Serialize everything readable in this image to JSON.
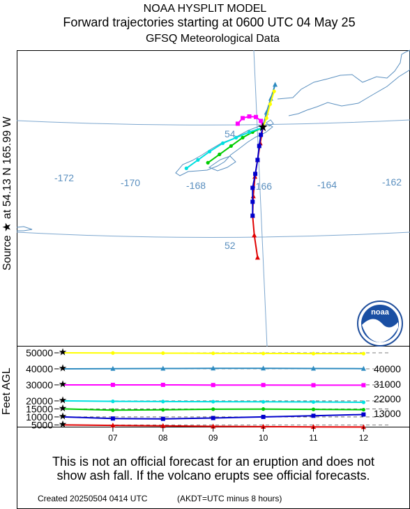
{
  "header": {
    "line1": "NOAA HYSPLIT MODEL",
    "line2": "Forward trajectories starting at 0600 UTC 04 May 25",
    "line3": "GFSQ Meteorological Data"
  },
  "source_label": "Source ★  at    54.13 N  165.99 W",
  "logo_text": "noaa",
  "map": {
    "lon_labels": [
      {
        "text": "-172"
      },
      {
        "text": "-170"
      },
      {
        "text": "-168"
      },
      {
        "text": "-166"
      },
      {
        "text": "-164"
      },
      {
        "text": "-162"
      }
    ],
    "lat_labels": [
      {
        "text": "54"
      },
      {
        "text": "52"
      }
    ]
  },
  "colors": {
    "h5000": "#e00000",
    "h10000": "#0000cc",
    "h15000": "#00cc00",
    "h20000": "#00e0e0",
    "h30000": "#ff00ff",
    "h40000": "#2e8bc0",
    "h50000": "#ffff00",
    "coast": "#5a8fbf",
    "grid": "#7da7cf"
  },
  "chart_data": {
    "type": "line",
    "title": "Forward trajectories starting at 0600 UTC 04 May 25",
    "source": {
      "lat": 54.13,
      "lon": -165.99
    },
    "ylabel": "Feet AGL",
    "x_ticks": [
      "07",
      "08",
      "09",
      "10",
      "11",
      "12"
    ],
    "y_ticks": [
      "5000",
      "10000",
      "15000",
      "20000",
      "30000",
      "40000",
      "50000"
    ],
    "right_labels": [
      "40000",
      "31000",
      "22000",
      "13000"
    ],
    "ylim": [
      3000,
      50000
    ],
    "series": [
      {
        "color": "#e00000",
        "marker": "triangle",
        "path": [
          [
            54.13,
            -165.99
          ],
          [
            53.85,
            -166.07
          ],
          [
            53.55,
            -166.15
          ],
          [
            53.25,
            -166.23
          ],
          [
            52.9,
            -166.28
          ],
          [
            52.55,
            -166.3
          ],
          [
            52.2,
            -166.25
          ],
          [
            51.8,
            -166.15
          ]
        ],
        "height": [
          5000,
          4700,
          4400,
          4100,
          3900,
          3800,
          3700
        ]
      },
      {
        "color": "#0000cc",
        "marker": "square",
        "path": [
          [
            54.13,
            -165.99
          ],
          [
            54.0,
            -166.05
          ],
          [
            53.8,
            -166.1
          ],
          [
            53.55,
            -166.15
          ],
          [
            53.3,
            -166.22
          ],
          [
            53.05,
            -166.3
          ],
          [
            52.8,
            -166.3
          ],
          [
            52.55,
            -166.3
          ]
        ],
        "height": [
          10000,
          9000,
          8800,
          9300,
          10000,
          10700,
          11500
        ]
      },
      {
        "color": "#00cc00",
        "marker": "circle",
        "path": [
          [
            54.13,
            -165.99
          ],
          [
            54.05,
            -166.3
          ],
          [
            53.95,
            -166.6
          ],
          [
            53.8,
            -166.95
          ],
          [
            53.65,
            -167.3
          ],
          [
            53.5,
            -167.65
          ]
        ],
        "height": [
          15000,
          14200,
          14400,
          14800,
          14900,
          14700,
          14500
        ]
      },
      {
        "color": "#00e0e0",
        "marker": "circle",
        "path": [
          [
            54.13,
            -165.99
          ],
          [
            54.05,
            -166.4
          ],
          [
            53.95,
            -166.8
          ],
          [
            53.85,
            -167.2
          ],
          [
            53.7,
            -167.6
          ],
          [
            53.55,
            -167.95
          ],
          [
            53.4,
            -168.3
          ]
        ],
        "height": [
          20000,
          19700,
          19600,
          19500,
          19400,
          19300,
          19100
        ]
      },
      {
        "color": "#ff00ff",
        "marker": "square",
        "path": [
          [
            54.13,
            -165.99
          ],
          [
            54.25,
            -166.05
          ],
          [
            54.32,
            -166.2
          ],
          [
            54.33,
            -166.4
          ],
          [
            54.3,
            -166.6
          ],
          [
            54.2,
            -166.75
          ]
        ],
        "height": [
          30000,
          30000,
          30000,
          29900,
          29900,
          29800,
          29800
        ]
      },
      {
        "color": "#2e8bc0",
        "marker": "triangle",
        "path": [
          [
            54.13,
            -165.99
          ],
          [
            54.4,
            -165.88
          ],
          [
            54.65,
            -165.75
          ],
          [
            54.9,
            -165.62
          ]
        ],
        "height": [
          40000,
          40100,
          40200,
          40300,
          40300,
          40200,
          40100
        ]
      },
      {
        "color": "#ffff00",
        "marker": "circle",
        "path": [
          [
            54.13,
            -165.99
          ],
          [
            54.3,
            -165.88
          ],
          [
            54.55,
            -165.77
          ],
          [
            54.78,
            -165.65
          ]
        ],
        "height": [
          50000,
          49900,
          49800,
          49700,
          49600,
          49500,
          49500
        ]
      }
    ]
  },
  "disclaimer": {
    "line1": "This is not an official forecast for an eruption and does not",
    "line2": "show ash fall. If the volcano erupts see official forecasts."
  },
  "footer": {
    "created": "Created 20250504 0414 UTC",
    "note": "(AKDT=UTC minus 8 hours)"
  }
}
